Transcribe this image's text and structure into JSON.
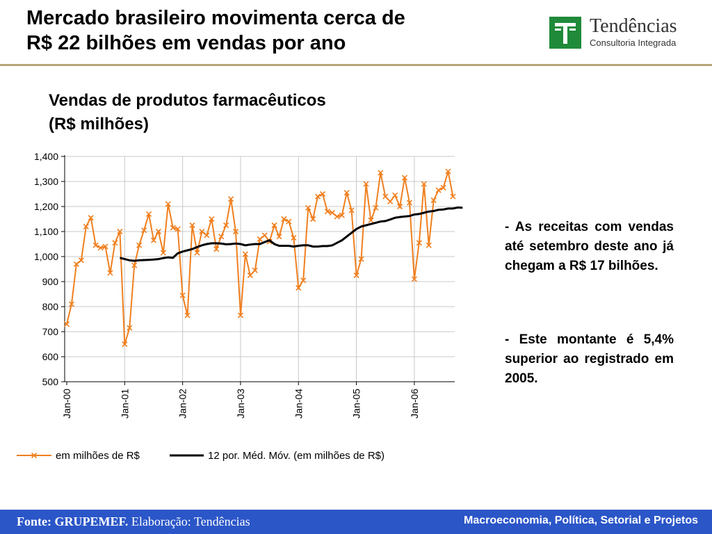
{
  "header": {
    "title_line1": "Mercado brasileiro movimenta cerca de",
    "title_line2": "R$ 22 bilhões em vendas por ano",
    "logo_name": "Tendências",
    "logo_sub": "Consultoria Integrada",
    "logo_mark": "T",
    "logo_color": "#1f8a3a",
    "rule_color": "#b8a67a"
  },
  "chart_data": {
    "type": "line",
    "title_line1": "Vendas de produtos farmacêuticos",
    "title_line2": "(R$ milhões)",
    "ylim": [
      500,
      1400
    ],
    "yticks": [
      "500",
      "600",
      "700",
      "800",
      "900",
      "1,000",
      "1,100",
      "1,200",
      "1,300",
      "1,400"
    ],
    "xticks": [
      "Jan-00",
      "Jan-01",
      "Jan-02",
      "Jan-03",
      "Jan-04",
      "Jan-05",
      "Jan-06"
    ],
    "start": "Jan-00",
    "grid": true,
    "legend": "bottom",
    "series": [
      {
        "name": "em milhões de R$",
        "color": "#f07f1e",
        "marker": "x",
        "values": [
          730,
          810,
          970,
          985,
          1120,
          1155,
          1045,
          1035,
          1040,
          935,
          1055,
          1100,
          650,
          715,
          965,
          1045,
          1105,
          1170,
          1065,
          1100,
          1015,
          1210,
          1115,
          1110,
          845,
          765,
          1125,
          1015,
          1100,
          1085,
          1150,
          1030,
          1080,
          1125,
          1230,
          1100,
          765,
          1010,
          925,
          945,
          1070,
          1085,
          1060,
          1125,
          1080,
          1150,
          1140,
          1075,
          875,
          905,
          1195,
          1150,
          1240,
          1250,
          1180,
          1175,
          1160,
          1165,
          1255,
          1185,
          925,
          990,
          1290,
          1145,
          1195,
          1335,
          1240,
          1220,
          1245,
          1200,
          1315,
          1215,
          910,
          1055,
          1290,
          1045,
          1225,
          1265,
          1275,
          1340,
          1240
        ]
      },
      {
        "name": "12 por. Méd. Móv. (em milhões de R$)",
        "color": "#000000",
        "start_index": 11,
        "values": [
          995,
          990,
          985,
          983,
          985,
          986,
          987,
          988,
          990,
          994,
          997,
          995,
          1013,
          1020,
          1025,
          1030,
          1038,
          1045,
          1050,
          1053,
          1053,
          1052,
          1049,
          1050,
          1052,
          1050,
          1045,
          1048,
          1050,
          1050,
          1058,
          1065,
          1050,
          1043,
          1043,
          1043,
          1040,
          1043,
          1045,
          1045,
          1040,
          1040,
          1042,
          1042,
          1045,
          1055,
          1065,
          1080,
          1095,
          1110,
          1120,
          1125,
          1130,
          1135,
          1140,
          1142,
          1148,
          1155,
          1158,
          1160,
          1162,
          1168,
          1170,
          1175,
          1180,
          1182,
          1187,
          1188,
          1192,
          1192,
          1196,
          1195
        ]
      }
    ]
  },
  "notes": {
    "note1": "- As receitas com vendas até setembro deste ano já chegam a R$ 17 bilhões.",
    "note2": "- Este montante é 5,4% superior ao registrado em 2005."
  },
  "footer": {
    "source_bold": "Fonte: GRUPEMEF.",
    "source_rest": " Elaboração: Tendências",
    "right": "Macroeconomia, Política, Setorial e Projetos",
    "color": "#2b56c8"
  }
}
